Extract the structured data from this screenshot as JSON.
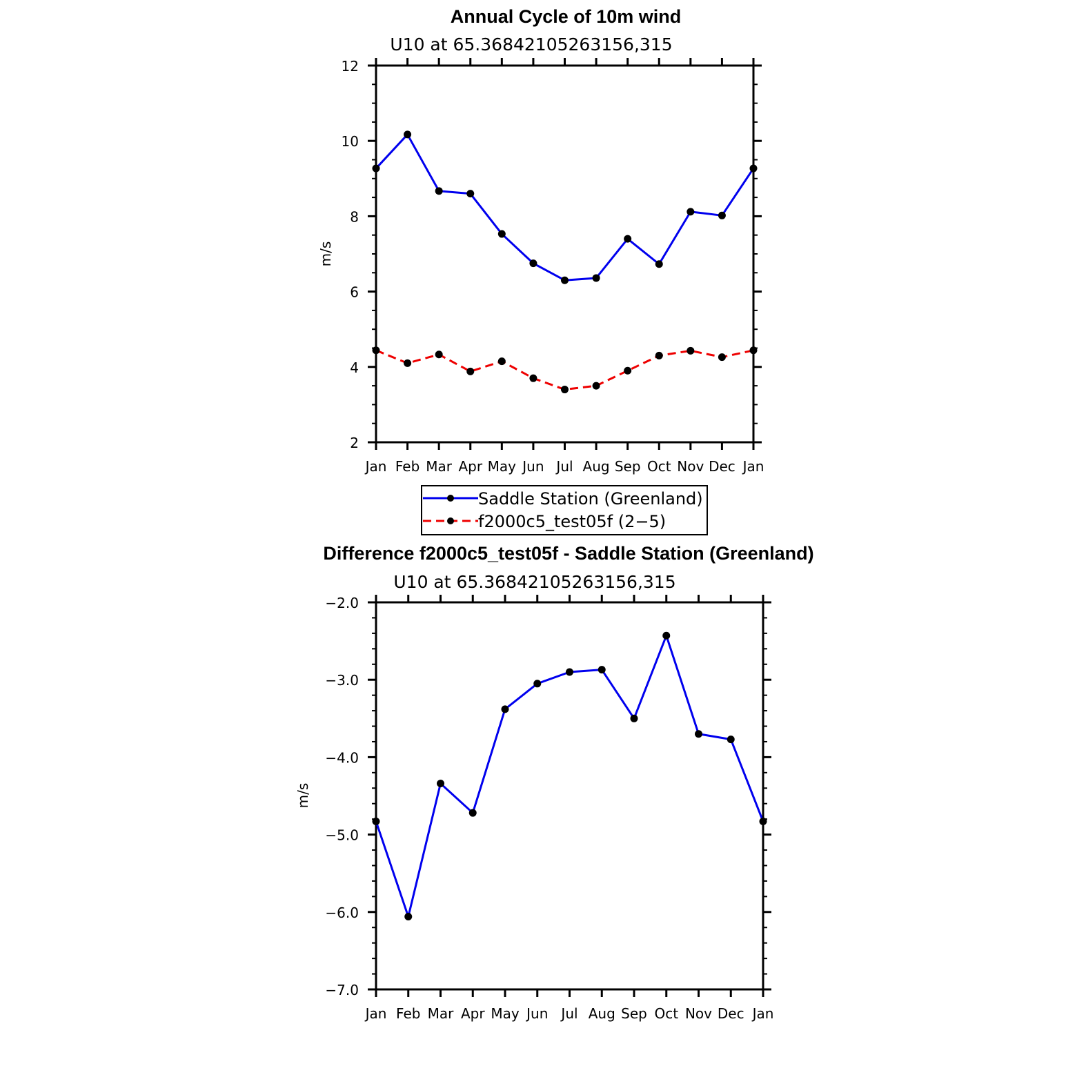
{
  "colors": {
    "series1": "#0000ee",
    "series2": "#ee0000",
    "marker": "#000000",
    "frame": "#000000"
  },
  "chart_data": [
    {
      "type": "line",
      "title": "Annual Cycle of 10m wind",
      "subtitle": "U10 at 65.36842105263156,315",
      "xlabel": "",
      "ylabel": "m/s",
      "categories": [
        "Jan",
        "Feb",
        "Mar",
        "Apr",
        "May",
        "Jun",
        "Jul",
        "Aug",
        "Sep",
        "Oct",
        "Nov",
        "Dec",
        "Jan"
      ],
      "ylim": [
        2,
        12
      ],
      "y_ticks": [
        2,
        4,
        6,
        8,
        10,
        12
      ],
      "y_tick_labels": [
        "2",
        "4",
        "6",
        "8",
        "10",
        "12"
      ],
      "series": [
        {
          "name": "Saddle Station (Greenland)",
          "style": "solid",
          "values": [
            9.27,
            10.17,
            8.67,
            8.6,
            7.53,
            6.75,
            6.3,
            6.36,
            7.4,
            6.73,
            8.12,
            8.02,
            9.27
          ]
        },
        {
          "name": "f2000c5_test05f (2−5)",
          "style": "dashed",
          "values": [
            4.44,
            4.1,
            4.33,
            3.88,
            4.15,
            3.7,
            3.4,
            3.5,
            3.9,
            4.3,
            4.43,
            4.26,
            4.44
          ]
        }
      ],
      "legend": {
        "position": "below"
      }
    },
    {
      "type": "line",
      "title": "Difference f2000c5_test05f - Saddle Station (Greenland)",
      "subtitle": "U10 at 65.36842105263156,315",
      "xlabel": "",
      "ylabel": "m/s",
      "categories": [
        "Jan",
        "Feb",
        "Mar",
        "Apr",
        "May",
        "Jun",
        "Jul",
        "Aug",
        "Sep",
        "Oct",
        "Nov",
        "Dec",
        "Jan"
      ],
      "ylim": [
        -7.0,
        -2.0
      ],
      "y_ticks": [
        -7.0,
        -6.0,
        -5.0,
        -4.0,
        -3.0,
        -2.0
      ],
      "y_tick_labels": [
        "−7.0",
        "−6.0",
        "−5.0",
        "−4.0",
        "−3.0",
        "−2.0"
      ],
      "series": [
        {
          "name": "Difference",
          "style": "solid",
          "values": [
            -4.83,
            -6.06,
            -4.34,
            -4.72,
            -3.38,
            -3.05,
            -2.9,
            -2.87,
            -3.5,
            -2.43,
            -3.7,
            -3.77,
            -4.83
          ]
        }
      ]
    }
  ]
}
